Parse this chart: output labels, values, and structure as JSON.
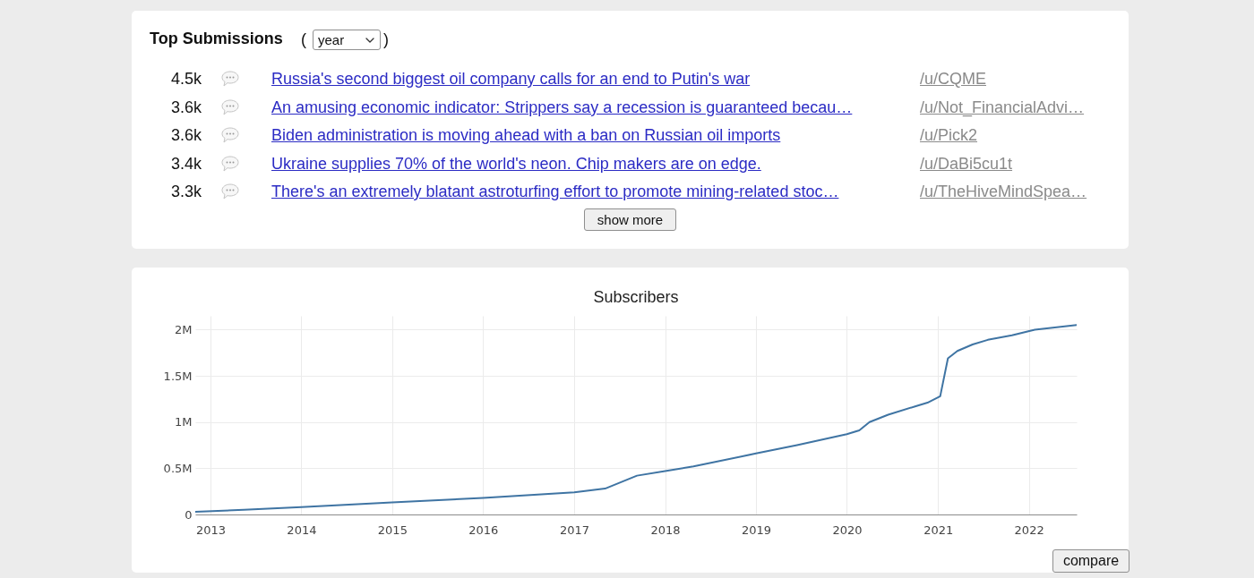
{
  "chart_data": [
    {
      "type": "other",
      "title": "Top Submissions",
      "annotations": [
        "(",
        "year",
        ")",
        "4.5k",
        "Russia's second biggest oil company calls for an end to Putin's war",
        "/u/CQME",
        "3.6k",
        "An amusing economic indicator: Strippers say a recession is guaranteed becau…",
        "/u/Not_FinancialAdvi…",
        "3.6k",
        "Biden administration is moving ahead with a ban on Russian oil imports",
        "/u/Pick2",
        "3.4k",
        "Ukraine supplies 70% of the world's neon. Chip makers are on edge.",
        "/u/DaBi5cu1t",
        "3.3k",
        "There's an extremely blatant astroturfing effort to promote mining-related stoc…",
        "/u/TheHiveMindSpea…",
        "show more"
      ]
    },
    {
      "type": "line",
      "title": "Subscribers",
      "x": [
        "2012-11-01",
        "2013-05-15",
        "2014-01-01",
        "2015-01-01",
        "2016-01-01",
        "2017-01-01",
        "2017-05-05",
        "2017-09-10",
        "2018-01-01",
        "2018-04-25",
        "2019-01-01",
        "2019-06-15",
        "2020-01-01",
        "2020-02-20",
        "2020-04-01",
        "2020-06-15",
        "2020-10-01",
        "2020-11-20",
        "2021-01-10",
        "2021-02-10",
        "2021-03-20",
        "2021-05-20",
        "2021-07-20",
        "2021-10-25",
        "2022-01-25",
        "2022-07-12"
      ],
      "series": [
        {
          "color": "#3f74a3",
          "values": [
            30000,
            50000,
            80000,
            130000,
            180000,
            240000,
            280000,
            420000,
            470000,
            520000,
            660000,
            750000,
            870000,
            910000,
            1000000,
            1080000,
            1170000,
            1210000,
            1280000,
            1690000,
            1770000,
            1840000,
            1890000,
            1940000,
            2000000,
            2050000
          ]
        }
      ],
      "xlim": [
        "2012-11-01",
        "2022-07-12"
      ],
      "xticks": [
        "2013",
        "2014",
        "2015",
        "2016",
        "2017",
        "2018",
        "2019",
        "2020",
        "2021",
        "2022"
      ],
      "ylim": [
        0,
        2150000
      ],
      "yticks": [
        0,
        {
          "value": 500000,
          "label": "0.5M"
        },
        {
          "value": 1000000,
          "label": "1M"
        },
        {
          "value": 1500000,
          "label": "1.5M"
        },
        {
          "value": 2000000,
          "label": "2M"
        }
      ],
      "grid": true,
      "annotations": [
        "compare"
      ]
    }
  ]
}
